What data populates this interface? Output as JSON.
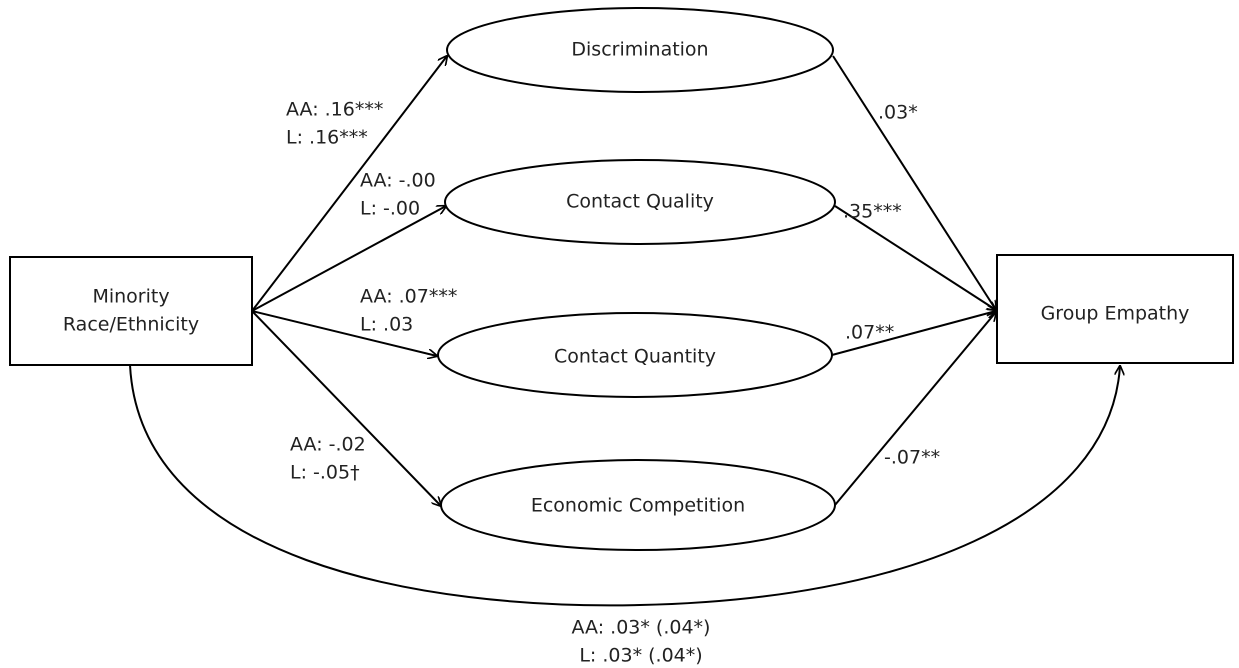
{
  "nodes": [
    {
      "label": "Minority"
    },
    {
      "label": "Race/Ethnicity"
    },
    {
      "label": "Discrimination"
    },
    {
      "label": "Contact Quality"
    },
    {
      "label": "Contact Quantity"
    },
    {
      "label": "Economic Competition"
    },
    {
      "label": "Group Empathy"
    }
  ],
  "edges": [
    {
      "lines": [
        "AA: .16***",
        "L: .16***"
      ]
    },
    {
      "lines": [
        "AA: -.00",
        "L: -.00"
      ]
    },
    {
      "lines": [
        "AA: .07***",
        "L: .03"
      ]
    },
    {
      "lines": [
        "AA: -.02",
        "L: -.05†"
      ]
    },
    {
      "lines": [
        ".03*"
      ]
    },
    {
      "lines": [
        ".35***"
      ]
    },
    {
      "lines": [
        ".07**"
      ]
    },
    {
      "lines": [
        "-.07**"
      ]
    },
    {
      "lines": [
        "AA: .03* (.04*)",
        "L: .03* (.04*)"
      ]
    }
  ]
}
